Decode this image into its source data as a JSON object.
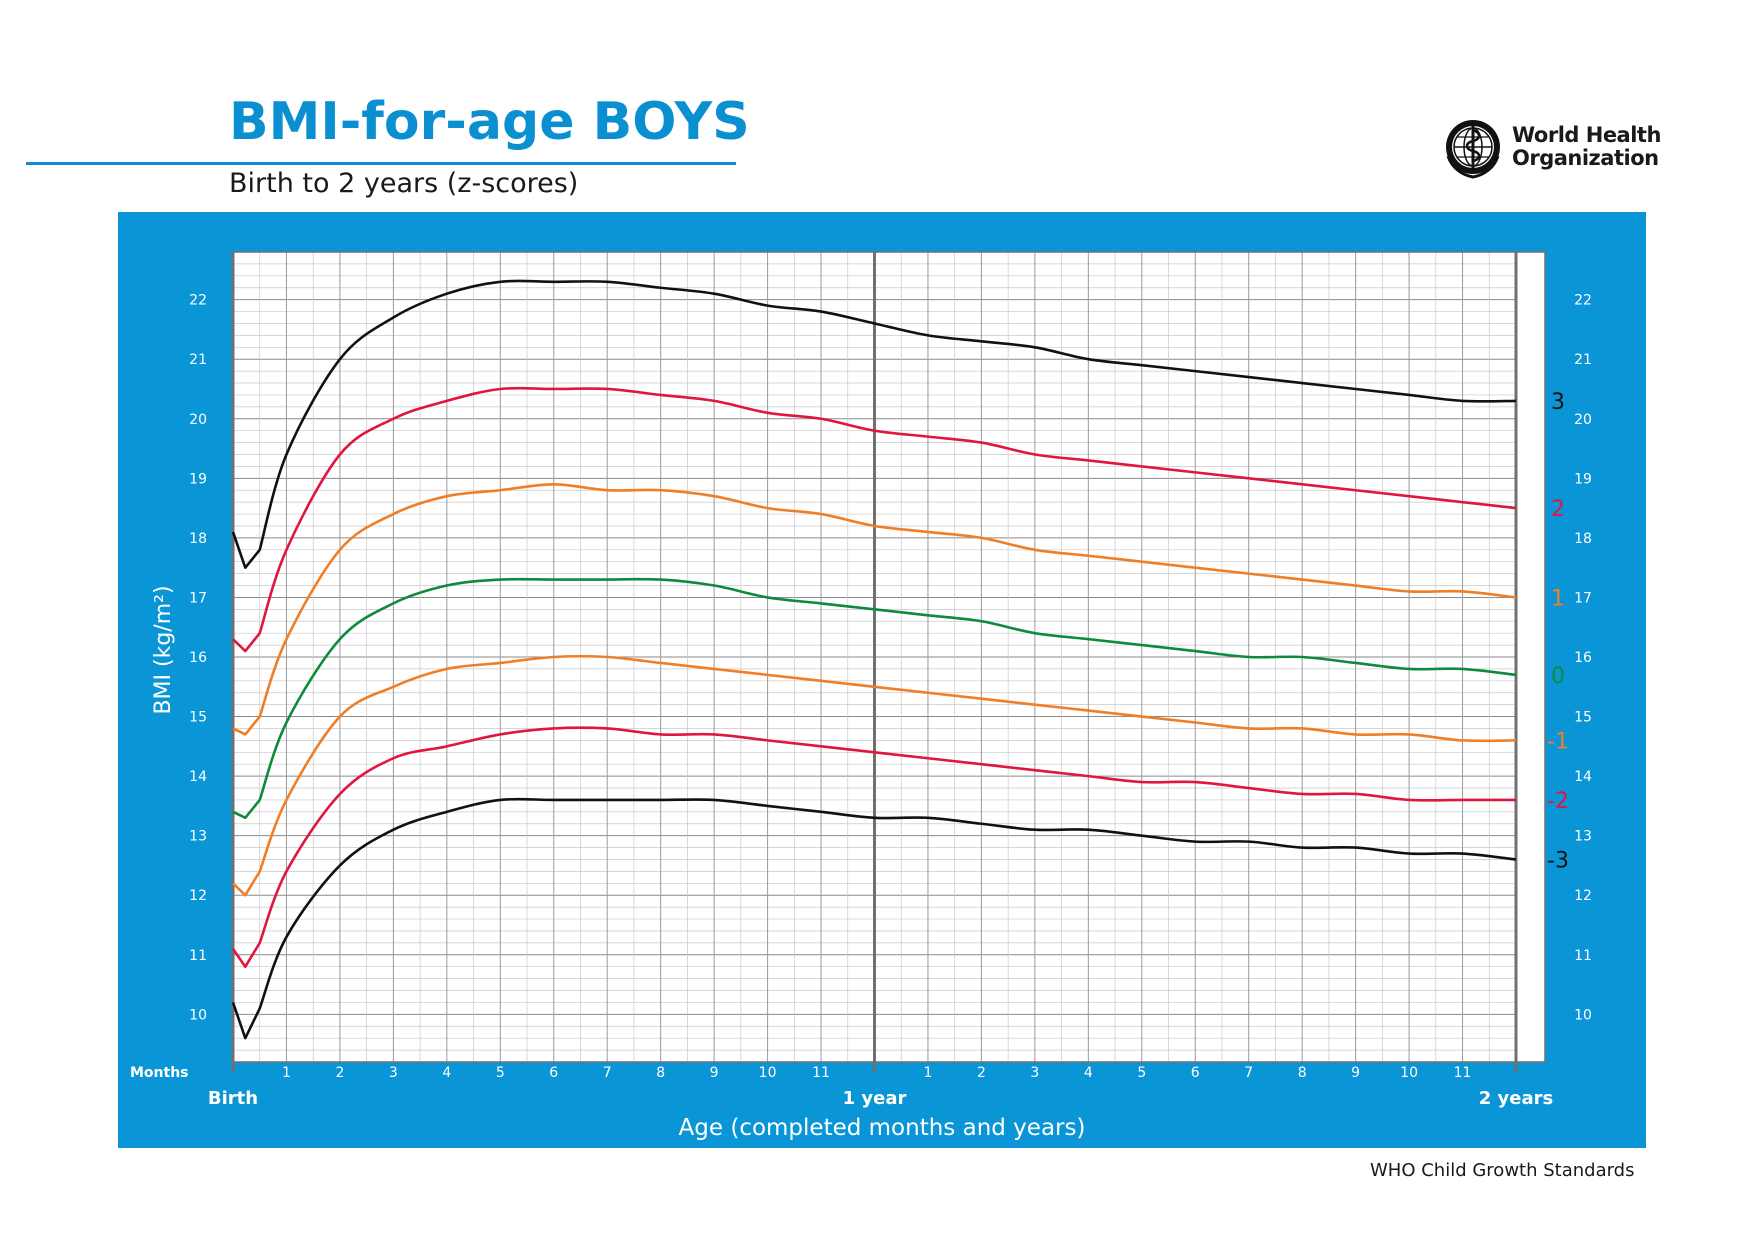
{
  "header": {
    "title": "BMI-for-age BOYS",
    "subtitle": "Birth to 2 years (z-scores)",
    "org_line1": "World Health",
    "org_line2": "Organization",
    "logo_icon": "who-emblem-icon"
  },
  "footer": {
    "note": "WHO Child Growth Standards"
  },
  "colors": {
    "accent": "#0a8fd1",
    "panel": "#0a96d6",
    "z_black": "#111111",
    "z_red": "#e0163f",
    "z_orange": "#f07e26",
    "z_green": "#0f8a3c"
  },
  "chart_data": {
    "type": "line",
    "title": "BMI-for-age BOYS",
    "subtitle": "Birth to 2 years (z-scores)",
    "xlabel": "Age (completed months and years)",
    "ylabel": "BMI (kg/m²)",
    "x_unit_label": "Months",
    "xlim": [
      0,
      24
    ],
    "ylim": [
      9.2,
      22.8
    ],
    "y_ticks": [
      10,
      11,
      12,
      13,
      14,
      15,
      16,
      17,
      18,
      19,
      20,
      21,
      22
    ],
    "x_tick_labels": [
      {
        "x": 0,
        "label": "Birth",
        "major": true
      },
      {
        "x": 1,
        "label": "1"
      },
      {
        "x": 2,
        "label": "2"
      },
      {
        "x": 3,
        "label": "3"
      },
      {
        "x": 4,
        "label": "4"
      },
      {
        "x": 5,
        "label": "5"
      },
      {
        "x": 6,
        "label": "6"
      },
      {
        "x": 7,
        "label": "7"
      },
      {
        "x": 8,
        "label": "8"
      },
      {
        "x": 9,
        "label": "9"
      },
      {
        "x": 10,
        "label": "10"
      },
      {
        "x": 11,
        "label": "11"
      },
      {
        "x": 12,
        "label": "1 year",
        "major": true
      },
      {
        "x": 13,
        "label": "1"
      },
      {
        "x": 14,
        "label": "2"
      },
      {
        "x": 15,
        "label": "3"
      },
      {
        "x": 16,
        "label": "4"
      },
      {
        "x": 17,
        "label": "5"
      },
      {
        "x": 18,
        "label": "6"
      },
      {
        "x": 19,
        "label": "7"
      },
      {
        "x": 20,
        "label": "8"
      },
      {
        "x": 21,
        "label": "9"
      },
      {
        "x": 22,
        "label": "10"
      },
      {
        "x": 23,
        "label": "11"
      },
      {
        "x": 24,
        "label": "2 years",
        "major": true
      }
    ],
    "grid": true,
    "x": [
      0,
      0.23,
      0.5,
      1,
      2,
      3,
      4,
      5,
      6,
      7,
      8,
      9,
      10,
      11,
      12,
      13,
      14,
      15,
      16,
      17,
      18,
      19,
      20,
      21,
      22,
      23,
      24
    ],
    "series": [
      {
        "name": "3",
        "color": "#111111",
        "values": [
          18.1,
          17.5,
          17.8,
          19.4,
          21.0,
          21.7,
          22.1,
          22.3,
          22.3,
          22.3,
          22.2,
          22.1,
          21.9,
          21.8,
          21.6,
          21.4,
          21.3,
          21.2,
          21.0,
          20.9,
          20.8,
          20.7,
          20.6,
          20.5,
          20.4,
          20.3,
          20.3
        ]
      },
      {
        "name": "2",
        "color": "#e0163f",
        "values": [
          16.3,
          16.1,
          16.4,
          17.8,
          19.4,
          20.0,
          20.3,
          20.5,
          20.5,
          20.5,
          20.4,
          20.3,
          20.1,
          20.0,
          19.8,
          19.7,
          19.6,
          19.4,
          19.3,
          19.2,
          19.1,
          19.0,
          18.9,
          18.8,
          18.7,
          18.6,
          18.5
        ]
      },
      {
        "name": "1",
        "color": "#f07e26",
        "values": [
          14.8,
          14.7,
          15.0,
          16.3,
          17.8,
          18.4,
          18.7,
          18.8,
          18.9,
          18.8,
          18.8,
          18.7,
          18.5,
          18.4,
          18.2,
          18.1,
          18.0,
          17.8,
          17.7,
          17.6,
          17.5,
          17.4,
          17.3,
          17.2,
          17.1,
          17.1,
          17.0
        ]
      },
      {
        "name": "0",
        "color": "#0f8a3c",
        "values": [
          13.4,
          13.3,
          13.6,
          14.9,
          16.3,
          16.9,
          17.2,
          17.3,
          17.3,
          17.3,
          17.3,
          17.2,
          17.0,
          16.9,
          16.8,
          16.7,
          16.6,
          16.4,
          16.3,
          16.2,
          16.1,
          16.0,
          16.0,
          15.9,
          15.8,
          15.8,
          15.7
        ]
      },
      {
        "name": "-1",
        "color": "#f07e26",
        "values": [
          12.2,
          12.0,
          12.4,
          13.6,
          15.0,
          15.5,
          15.8,
          15.9,
          16.0,
          16.0,
          15.9,
          15.8,
          15.7,
          15.6,
          15.5,
          15.4,
          15.3,
          15.2,
          15.1,
          15.0,
          14.9,
          14.8,
          14.8,
          14.7,
          14.7,
          14.6,
          14.6
        ]
      },
      {
        "name": "-2",
        "color": "#e0163f",
        "values": [
          11.1,
          10.8,
          11.2,
          12.4,
          13.7,
          14.3,
          14.5,
          14.7,
          14.8,
          14.8,
          14.7,
          14.7,
          14.6,
          14.5,
          14.4,
          14.3,
          14.2,
          14.1,
          14.0,
          13.9,
          13.9,
          13.8,
          13.7,
          13.7,
          13.6,
          13.6,
          13.6
        ]
      },
      {
        "name": "-3",
        "color": "#111111",
        "values": [
          10.2,
          9.6,
          10.1,
          11.3,
          12.5,
          13.1,
          13.4,
          13.6,
          13.6,
          13.6,
          13.6,
          13.6,
          13.5,
          13.4,
          13.3,
          13.3,
          13.2,
          13.1,
          13.1,
          13.0,
          12.9,
          12.9,
          12.8,
          12.8,
          12.7,
          12.7,
          12.6
        ]
      }
    ]
  }
}
